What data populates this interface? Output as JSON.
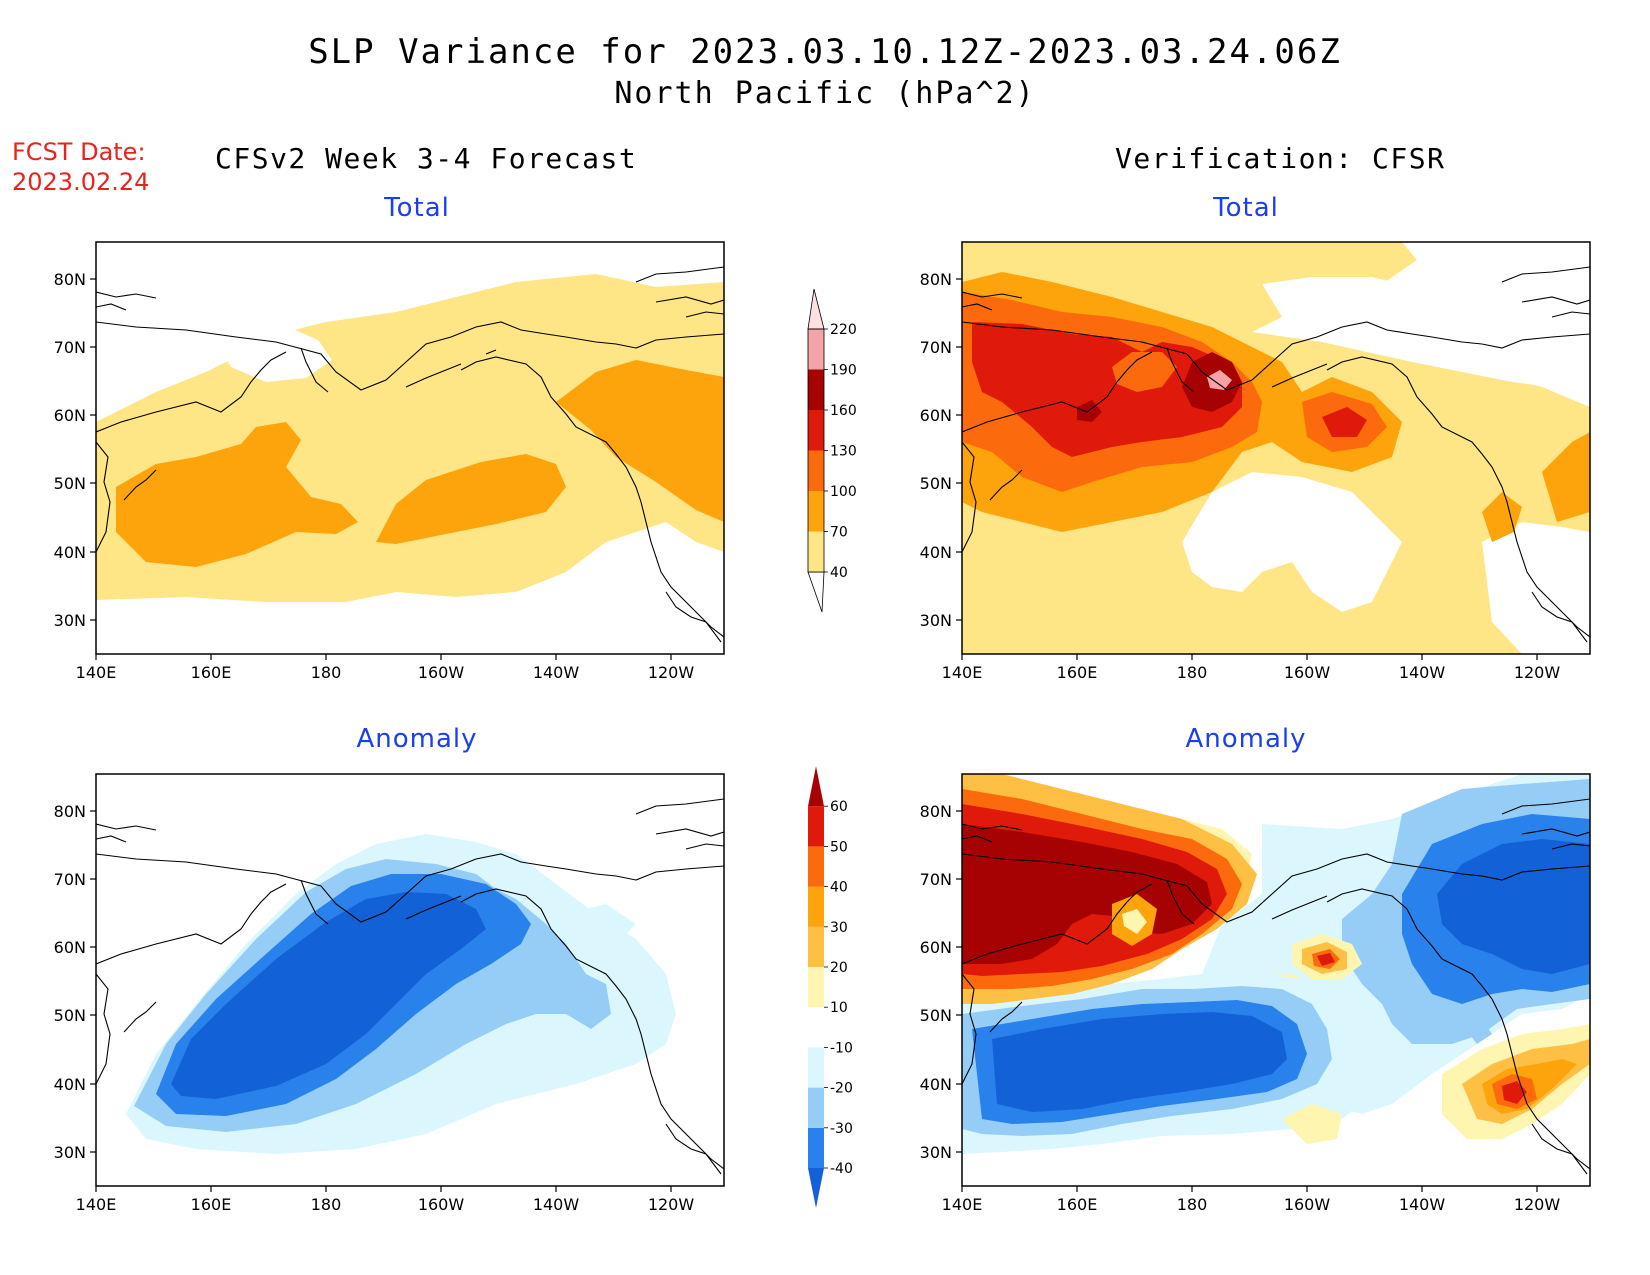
{
  "header": {
    "title_line1": "SLP Variance for 2023.03.10.12Z-2023.03.24.06Z",
    "title_line2": "North Pacific (hPa^2)",
    "fcst_line1": "FCST Date:",
    "fcst_line2": "2023.02.24"
  },
  "columns": {
    "left_title": "CFSv2 Week 3-4 Forecast",
    "right_title": "Verification: CFSR"
  },
  "panels": {
    "top_left_label": "Total",
    "top_right_label": "Total",
    "bottom_left_label": "Anomaly",
    "bottom_right_label": "Anomaly"
  },
  "axes": {
    "lat_ticks": [
      "80N",
      "70N",
      "60N",
      "50N",
      "40N",
      "30N"
    ],
    "lon_ticks": [
      "140E",
      "160E",
      "180",
      "160W",
      "140W",
      "120W"
    ]
  },
  "colorbars": {
    "total": {
      "labels": [
        "40",
        "70",
        "100",
        "130",
        "160",
        "190",
        "220"
      ],
      "colors": [
        "#fee586",
        "#fda30b",
        "#fb6a0c",
        "#e01a0b",
        "#a60204",
        "#f4a3a8",
        "#fde1e2"
      ]
    },
    "anomaly": {
      "labels": [
        "-40",
        "-30",
        "-20",
        "-10",
        "10",
        "20",
        "30",
        "40",
        "50",
        "60"
      ],
      "colors": [
        "#1361d6",
        "#2981ec",
        "#96cdf7",
        "#dbf7fd",
        "#ffffff",
        "#fef6b0",
        "#fdc044",
        "#fda30b",
        "#fb6a0c",
        "#e01a0b",
        "#a60204"
      ]
    }
  }
}
